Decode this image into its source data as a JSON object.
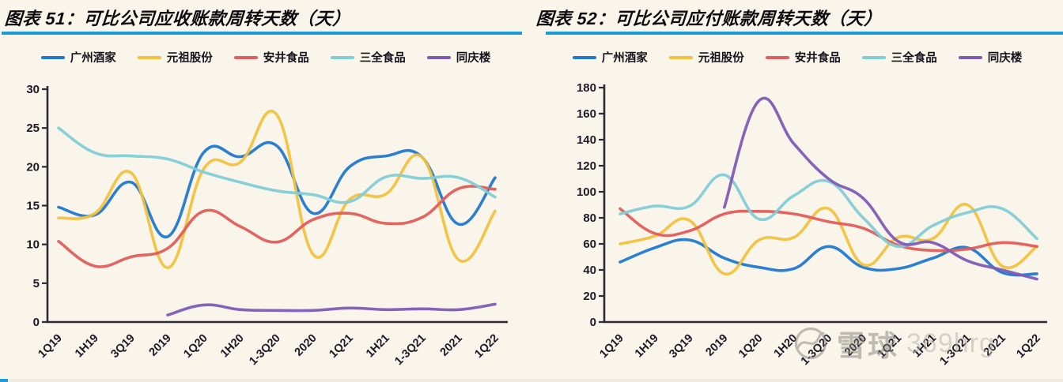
{
  "page": {
    "background": "#f9f5ea",
    "accent_underline": "#1b9bd7"
  },
  "watermark": {
    "icon": "xueqiu-logo",
    "brand": "雪球",
    "user_id": "369hrg"
  },
  "chart_data": [
    {
      "type": "line",
      "title": "图表 51：可比公司应收账款周转天数（天）",
      "xlabel": "",
      "ylabel": "",
      "ylim": [
        0,
        30
      ],
      "ytick_step": 5,
      "grid": false,
      "legend_position": "top",
      "categories": [
        "1Q19",
        "1H19",
        "3Q19",
        "2019",
        "1Q20",
        "1H20",
        "1-3Q20",
        "2020",
        "1Q21",
        "1H21",
        "1-3Q21",
        "2021",
        "1Q22"
      ],
      "series": [
        {
          "name": "广州酒家",
          "color": "#1f78d1",
          "values": [
            14.8,
            13.8,
            18.0,
            11.0,
            21.9,
            21.3,
            22.7,
            14.0,
            20.0,
            21.4,
            21.2,
            12.6,
            18.6
          ]
        },
        {
          "name": "元祖股份",
          "color": "#f2c13d",
          "values": [
            13.4,
            14.0,
            19.2,
            7.0,
            19.8,
            20.6,
            26.7,
            8.7,
            15.8,
            16.5,
            21.2,
            8.0,
            14.3
          ]
        },
        {
          "name": "安井食品",
          "color": "#e25d5b",
          "values": [
            10.4,
            7.2,
            8.4,
            9.5,
            14.3,
            12.3,
            10.3,
            13.2,
            14.0,
            12.7,
            13.5,
            17.2,
            17.1
          ]
        },
        {
          "name": "三全食品",
          "color": "#82ccd6",
          "values": [
            25.0,
            21.8,
            21.4,
            21.0,
            19.3,
            18.0,
            16.9,
            16.4,
            15.5,
            18.7,
            18.5,
            18.6,
            16.1
          ]
        },
        {
          "name": "同庆楼",
          "color": "#7e5bb7",
          "values": [
            null,
            null,
            null,
            0.9,
            2.2,
            1.6,
            1.5,
            1.5,
            1.8,
            1.6,
            1.7,
            1.6,
            2.3
          ]
        }
      ]
    },
    {
      "type": "line",
      "title": "图表 52：可比公司应付账款周转天数（天）",
      "xlabel": "",
      "ylabel": "",
      "ylim": [
        0,
        180
      ],
      "ytick_step": 20,
      "grid": false,
      "legend_position": "top",
      "categories": [
        "1Q19",
        "1H19",
        "3Q19",
        "2019",
        "1Q20",
        "1H20",
        "1-3Q20",
        "2020",
        "1Q21",
        "1H21",
        "1-3Q21",
        "2021",
        "1Q22"
      ],
      "series": [
        {
          "name": "广州酒家",
          "color": "#1f78d1",
          "values": [
            46,
            57,
            63,
            49,
            42,
            41,
            58,
            42,
            41,
            49,
            57,
            38,
            37
          ]
        },
        {
          "name": "元祖股份",
          "color": "#f2c13d",
          "values": [
            60,
            66,
            78,
            37,
            63,
            65,
            87,
            44,
            65,
            64,
            90,
            43,
            58
          ]
        },
        {
          "name": "安井食品",
          "color": "#e25d5b",
          "values": [
            87,
            68,
            70,
            83,
            85,
            83,
            77,
            72,
            59,
            55,
            56,
            61,
            58
          ]
        },
        {
          "name": "三全食品",
          "color": "#82ccd6",
          "values": [
            83,
            89,
            89,
            113,
            79,
            97,
            108,
            80,
            58,
            74,
            84,
            87,
            64
          ]
        },
        {
          "name": "同庆楼",
          "color": "#7e5bb7",
          "values": [
            null,
            null,
            null,
            88,
            170,
            137,
            110,
            95,
            62,
            61,
            47,
            40,
            33
          ]
        }
      ]
    }
  ]
}
